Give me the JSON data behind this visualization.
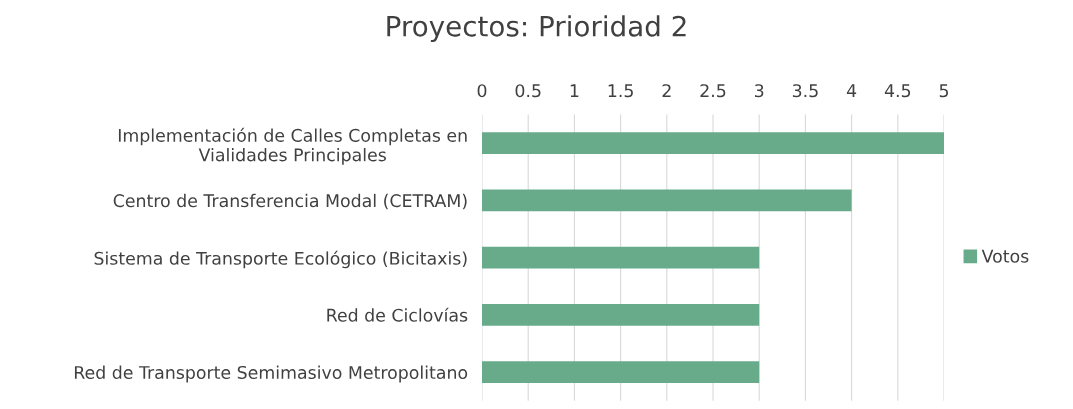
{
  "chart_data": {
    "type": "bar",
    "orientation": "horizontal",
    "title": "Proyectos: Prioridad 2",
    "categories": [
      "Implementación de Calles Completas en\nVialidades Principales",
      "Centro de Transferencia Modal (CETRAM)",
      "Sistema de Transporte Ecológico (Bicitaxis)",
      "Red de Ciclovías",
      "Red de Transporte Semimasivo Metropolitano"
    ],
    "series": [
      {
        "name": "Votos",
        "color": "#67ab8b",
        "values": [
          5,
          4,
          3,
          3,
          3
        ]
      }
    ],
    "xlim": [
      0,
      5
    ],
    "xticks": [
      0,
      0.5,
      1,
      1.5,
      2,
      2.5,
      3,
      3.5,
      4,
      4.5,
      5
    ],
    "grid": "x",
    "legend": "right"
  }
}
